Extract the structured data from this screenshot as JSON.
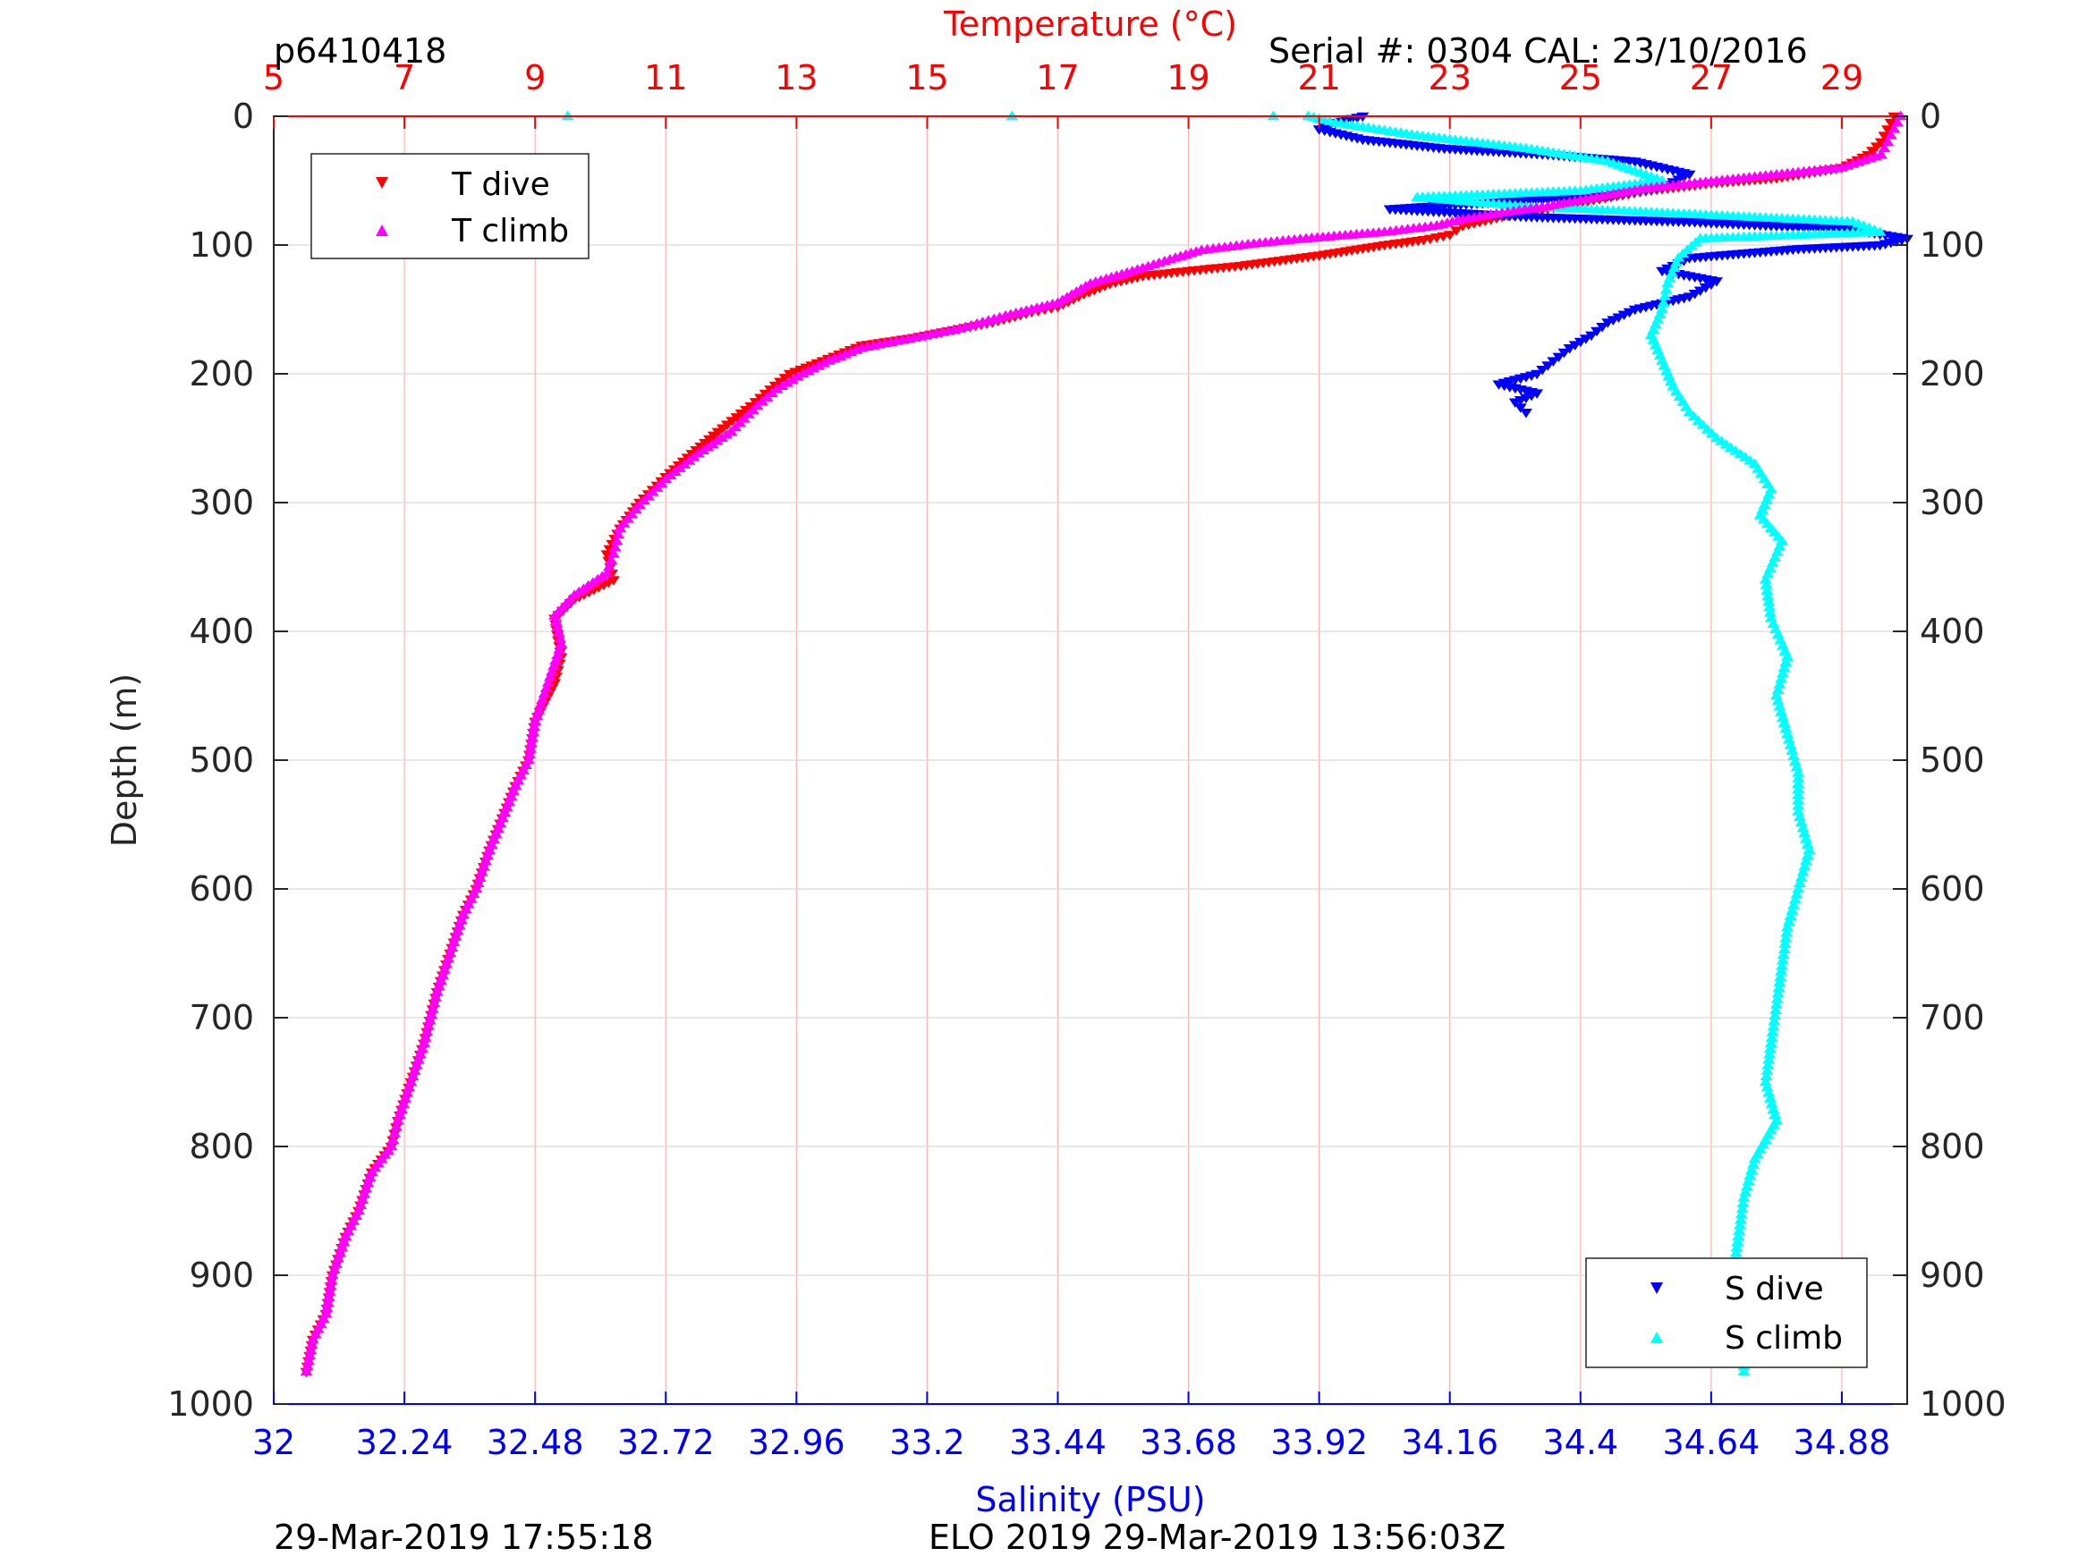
{
  "header": {
    "profile_id": "p6410418",
    "serial": "Serial #: 0304  CAL: 23/10/2016"
  },
  "footer": {
    "left_timestamp": "29-Mar-2019 17:55:18",
    "center_text": "ELO 2019 29-Mar-2019 13:56:03Z"
  },
  "colors": {
    "temperature_axis": "#ff0000",
    "salinity_axis": "#0000ff",
    "t_dive": "#ff0000",
    "t_climb": "#ff00ff",
    "s_dive": "#0000ff",
    "s_climb": "#00ffff",
    "grid_vertical": "#ffb3b3",
    "grid_horizontal": "#d9d9d9"
  },
  "chart_data": {
    "type": "scatter",
    "title": "",
    "ylabel": "Depth (m)",
    "ylim": [
      1000,
      0
    ],
    "yticks": [
      0,
      100,
      200,
      300,
      400,
      500,
      600,
      700,
      800,
      900,
      1000
    ],
    "grid": "on",
    "top_axis": {
      "label": "Temperature (°C)",
      "lim": [
        5,
        30
      ],
      "ticks": [
        5,
        7,
        9,
        11,
        13,
        15,
        17,
        19,
        21,
        23,
        25,
        27,
        29
      ]
    },
    "bottom_axis": {
      "label": "Salinity (PSU)",
      "lim": [
        32,
        35.0
      ],
      "ticks": [
        32,
        32.24,
        32.48,
        32.72,
        32.96,
        33.2,
        33.44,
        33.68,
        33.92,
        34.16,
        34.4,
        34.64,
        34.88
      ],
      "tick_labels": [
        "32",
        "32.24",
        "32.48",
        "32.72",
        "32.96",
        "33.2",
        "33.44",
        "33.68",
        "33.92",
        "34.16",
        "34.4",
        "34.64",
        "34.88"
      ]
    },
    "legend_temperature": {
      "placement": "top-left",
      "entries": [
        "T dive",
        "T climb"
      ]
    },
    "legend_salinity": {
      "placement": "bottom-right",
      "entries": [
        "S dive",
        "S climb"
      ]
    },
    "series": [
      {
        "name": "T dive",
        "axis": "temperature",
        "marker": "triangle-down",
        "points": [
          [
            29.8,
            0
          ],
          [
            29.7,
            10
          ],
          [
            29.6,
            20
          ],
          [
            29.4,
            30
          ],
          [
            29.0,
            40
          ],
          [
            28.0,
            48
          ],
          [
            27.0,
            52
          ],
          [
            26.0,
            58
          ],
          [
            25.2,
            65
          ],
          [
            24.5,
            72
          ],
          [
            23.8,
            78
          ],
          [
            23.2,
            85
          ],
          [
            23.0,
            92
          ],
          [
            22.6,
            96
          ],
          [
            22.0,
            100
          ],
          [
            21.5,
            104
          ],
          [
            21.0,
            108
          ],
          [
            20.4,
            112
          ],
          [
            19.8,
            116
          ],
          [
            19.0,
            120
          ],
          [
            18.3,
            124
          ],
          [
            17.8,
            130
          ],
          [
            17.4,
            138
          ],
          [
            17.0,
            148
          ],
          [
            16.6,
            152
          ],
          [
            16.0,
            160
          ],
          [
            15.4,
            166
          ],
          [
            14.8,
            172
          ],
          [
            14.0,
            178
          ],
          [
            13.4,
            190
          ],
          [
            12.9,
            200
          ],
          [
            12.6,
            212
          ],
          [
            12.3,
            225
          ],
          [
            11.8,
            245
          ],
          [
            11.4,
            262
          ],
          [
            11.0,
            280
          ],
          [
            10.6,
            300
          ],
          [
            10.3,
            320
          ],
          [
            10.1,
            340
          ],
          [
            10.2,
            360
          ],
          [
            9.6,
            375
          ],
          [
            9.3,
            390
          ],
          [
            9.4,
            420
          ],
          [
            9.3,
            440
          ],
          [
            9.0,
            470
          ],
          [
            8.9,
            500
          ],
          [
            8.7,
            520
          ],
          [
            8.5,
            545
          ],
          [
            8.3,
            570
          ],
          [
            8.1,
            600
          ],
          [
            7.9,
            620
          ],
          [
            7.7,
            650
          ],
          [
            7.5,
            680
          ],
          [
            7.3,
            720
          ],
          [
            7.1,
            750
          ],
          [
            6.9,
            780
          ],
          [
            6.8,
            800
          ],
          [
            6.5,
            820
          ],
          [
            6.3,
            850
          ],
          [
            6.1,
            870
          ],
          [
            5.9,
            900
          ],
          [
            5.8,
            930
          ],
          [
            5.6,
            950
          ],
          [
            5.5,
            975
          ]
        ]
      },
      {
        "name": "T climb",
        "axis": "temperature",
        "marker": "triangle-up",
        "points": [
          [
            29.9,
            0
          ],
          [
            29.8,
            10
          ],
          [
            29.7,
            20
          ],
          [
            29.6,
            30
          ],
          [
            29.0,
            40
          ],
          [
            27.5,
            48
          ],
          [
            26.0,
            56
          ],
          [
            25.0,
            65
          ],
          [
            24.5,
            70
          ],
          [
            23.8,
            75
          ],
          [
            23.2,
            80
          ],
          [
            22.8,
            85
          ],
          [
            22.0,
            90
          ],
          [
            20.8,
            95
          ],
          [
            20.0,
            99
          ],
          [
            19.2,
            104
          ],
          [
            18.8,
            110
          ],
          [
            18.3,
            118
          ],
          [
            17.5,
            130
          ],
          [
            17.0,
            145
          ],
          [
            16.2,
            155
          ],
          [
            15.5,
            165
          ],
          [
            14.8,
            172
          ],
          [
            14.0,
            180
          ],
          [
            13.5,
            190
          ],
          [
            13.1,
            200
          ],
          [
            12.7,
            212
          ],
          [
            12.4,
            225
          ],
          [
            12.0,
            245
          ],
          [
            11.5,
            262
          ],
          [
            11.0,
            282
          ],
          [
            10.6,
            302
          ],
          [
            10.3,
            320
          ],
          [
            10.2,
            340
          ],
          [
            10.1,
            355
          ],
          [
            9.6,
            372
          ],
          [
            9.3,
            388
          ],
          [
            9.4,
            410
          ],
          [
            9.2,
            440
          ],
          [
            9.0,
            470
          ],
          [
            8.9,
            500
          ],
          [
            8.7,
            520
          ],
          [
            8.5,
            545
          ],
          [
            8.3,
            570
          ],
          [
            8.1,
            600
          ],
          [
            7.9,
            620
          ],
          [
            7.7,
            650
          ],
          [
            7.5,
            680
          ],
          [
            7.3,
            720
          ],
          [
            7.1,
            750
          ],
          [
            6.9,
            780
          ],
          [
            6.8,
            800
          ],
          [
            6.5,
            820
          ],
          [
            6.3,
            850
          ],
          [
            6.1,
            870
          ],
          [
            5.9,
            900
          ],
          [
            5.8,
            930
          ],
          [
            5.6,
            950
          ],
          [
            5.5,
            975
          ]
        ]
      },
      {
        "name": "S dive",
        "axis": "salinity",
        "marker": "triangle-down",
        "points": [
          [
            34.0,
            0
          ],
          [
            33.95,
            5
          ],
          [
            33.92,
            10
          ],
          [
            34.0,
            18
          ],
          [
            34.15,
            25
          ],
          [
            34.35,
            30
          ],
          [
            34.5,
            35
          ],
          [
            34.6,
            45
          ],
          [
            34.55,
            55
          ],
          [
            34.45,
            62
          ],
          [
            34.2,
            68
          ],
          [
            34.05,
            72
          ],
          [
            34.3,
            78
          ],
          [
            34.6,
            82
          ],
          [
            34.9,
            88
          ],
          [
            35.0,
            95
          ],
          [
            34.95,
            100
          ],
          [
            34.8,
            103
          ],
          [
            34.6,
            110
          ],
          [
            34.55,
            120
          ],
          [
            34.65,
            128
          ],
          [
            34.6,
            140
          ],
          [
            34.5,
            150
          ],
          [
            34.45,
            160
          ],
          [
            34.42,
            170
          ],
          [
            34.38,
            180
          ],
          [
            34.35,
            190
          ],
          [
            34.32,
            200
          ],
          [
            34.25,
            208
          ],
          [
            34.32,
            215
          ],
          [
            34.28,
            222
          ],
          [
            34.3,
            230
          ]
        ]
      },
      {
        "name": "S climb",
        "axis": "salinity",
        "marker": "triangle-up",
        "points": [
          [
            33.9,
            0
          ],
          [
            33.95,
            5
          ],
          [
            34.1,
            15
          ],
          [
            34.3,
            25
          ],
          [
            34.45,
            35
          ],
          [
            34.55,
            50
          ],
          [
            34.4,
            58
          ],
          [
            34.1,
            63
          ],
          [
            34.3,
            70
          ],
          [
            34.6,
            76
          ],
          [
            34.9,
            82
          ],
          [
            34.95,
            90
          ],
          [
            34.62,
            95
          ],
          [
            34.58,
            110
          ],
          [
            34.56,
            130
          ],
          [
            34.55,
            150
          ],
          [
            34.53,
            170
          ],
          [
            34.55,
            190
          ],
          [
            34.57,
            210
          ],
          [
            34.6,
            230
          ],
          [
            34.65,
            250
          ],
          [
            34.72,
            270
          ],
          [
            34.75,
            290
          ],
          [
            34.73,
            310
          ],
          [
            34.77,
            330
          ],
          [
            34.74,
            360
          ],
          [
            34.75,
            390
          ],
          [
            34.78,
            420
          ],
          [
            34.76,
            450
          ],
          [
            34.78,
            480
          ],
          [
            34.8,
            510
          ],
          [
            34.8,
            540
          ],
          [
            34.82,
            570
          ],
          [
            34.8,
            600
          ],
          [
            34.78,
            630
          ],
          [
            34.77,
            660
          ],
          [
            34.76,
            690
          ],
          [
            34.75,
            720
          ],
          [
            34.74,
            750
          ],
          [
            34.76,
            780
          ],
          [
            34.72,
            810
          ],
          [
            34.7,
            840
          ],
          [
            34.69,
            870
          ],
          [
            34.68,
            900
          ],
          [
            34.69,
            930
          ],
          [
            34.7,
            950
          ],
          [
            34.7,
            975
          ]
        ]
      }
    ],
    "annotations": {
      "top_axis_markers": [
        {
          "temperature": 9.5,
          "depth": 0
        },
        {
          "temperature": 16.3,
          "depth": 0
        },
        {
          "temperature": 20.3,
          "depth": 0
        }
      ]
    }
  }
}
